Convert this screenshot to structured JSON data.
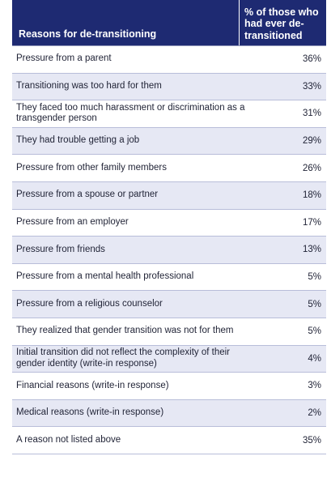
{
  "table": {
    "header_reason": "Reasons for de-transitioning",
    "header_pct": "% of those who had ever de-transitioned",
    "rows": [
      {
        "reason": "Pressure from a parent",
        "pct": "36%"
      },
      {
        "reason": "Transitioning was too hard for them",
        "pct": "33%"
      },
      {
        "reason": "They faced too much harassment or discrimination as a transgender person",
        "pct": "31%"
      },
      {
        "reason": "They had trouble getting a job",
        "pct": "29%"
      },
      {
        "reason": "Pressure from other family members",
        "pct": "26%"
      },
      {
        "reason": "Pressure from a spouse or partner",
        "pct": "18%"
      },
      {
        "reason": "Pressure from an employer",
        "pct": "17%"
      },
      {
        "reason": "Pressure from friends",
        "pct": "13%"
      },
      {
        "reason": "Pressure from a mental health professional",
        "pct": "5%"
      },
      {
        "reason": "Pressure from a religious counselor",
        "pct": "5%"
      },
      {
        "reason": "They realized that gender transition was not for them",
        "pct": "5%"
      },
      {
        "reason": "Initial transition did not reflect the complexity of their gender identity (write-in response)",
        "pct": "4%"
      },
      {
        "reason": "Financial reasons (write-in response)",
        "pct": "3%"
      },
      {
        "reason": "Medical reasons (write-in response)",
        "pct": "2%"
      },
      {
        "reason": "A reason not listed above",
        "pct": "35%"
      }
    ]
  },
  "colors": {
    "header_bg": "#1e2a72",
    "alt_row_bg": "#e6e8f4",
    "row_border": "#b8bdd9"
  }
}
